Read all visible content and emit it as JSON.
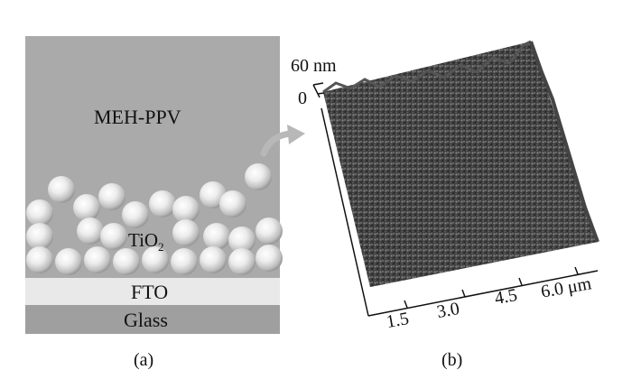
{
  "panel_a": {
    "meh_ppv_label": "MEH-PPV",
    "tio2_label_main": "TiO",
    "tio2_label_sub": "2",
    "fto_label": "FTO",
    "glass_label": "Glass",
    "panel_label": "(a)"
  },
  "panel_b": {
    "z_max_label": "60 nm",
    "z_zero_label": "0",
    "x_ticks": [
      "1.5",
      "3.0",
      "4.5",
      "6.0 μm"
    ],
    "panel_label": "(b)"
  },
  "colors": {
    "meh_ppv": "#aaaaaa",
    "fto": "#e9e9e9",
    "glass": "#9f9f9f",
    "arrow": "#b8b8b8"
  }
}
